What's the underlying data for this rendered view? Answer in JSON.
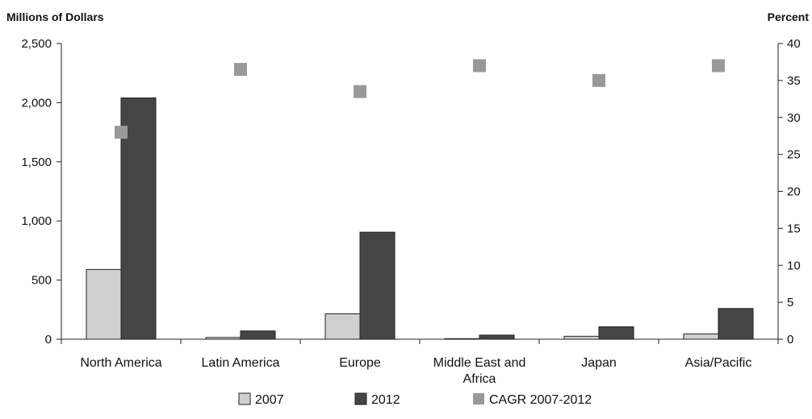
{
  "chart_data": {
    "type": "bar",
    "left_axis_title": "Millions of Dollars",
    "right_axis_title": "Percent",
    "categories": [
      [
        "North America"
      ],
      [
        "Latin America"
      ],
      [
        "Europe"
      ],
      [
        "Middle East and",
        "Africa"
      ],
      [
        "Japan"
      ],
      [
        "Asia/Pacific"
      ]
    ],
    "series": [
      {
        "name": "2007",
        "type": "bar",
        "axis": "left",
        "color": "#d0d0d0",
        "values": [
          590,
          15,
          215,
          5,
          25,
          45
        ]
      },
      {
        "name": "2012",
        "type": "bar",
        "axis": "left",
        "color": "#454545",
        "values": [
          2040,
          70,
          905,
          35,
          105,
          260
        ]
      },
      {
        "name": "CAGR 2007-2012",
        "type": "scatter",
        "axis": "right",
        "color": "#999999",
        "values": [
          28,
          36.5,
          33.5,
          37,
          35,
          37
        ]
      }
    ],
    "left_axis": {
      "min": 0,
      "max": 2500,
      "ticks": [
        "0",
        "500",
        "1,000",
        "1,500",
        "2,000",
        "2,500"
      ]
    },
    "right_axis": {
      "min": 0,
      "max": 40,
      "ticks": [
        "0",
        "5",
        "10",
        "15",
        "20",
        "25",
        "30",
        "35",
        "40"
      ]
    },
    "grid": false,
    "legend_position": "bottom"
  }
}
